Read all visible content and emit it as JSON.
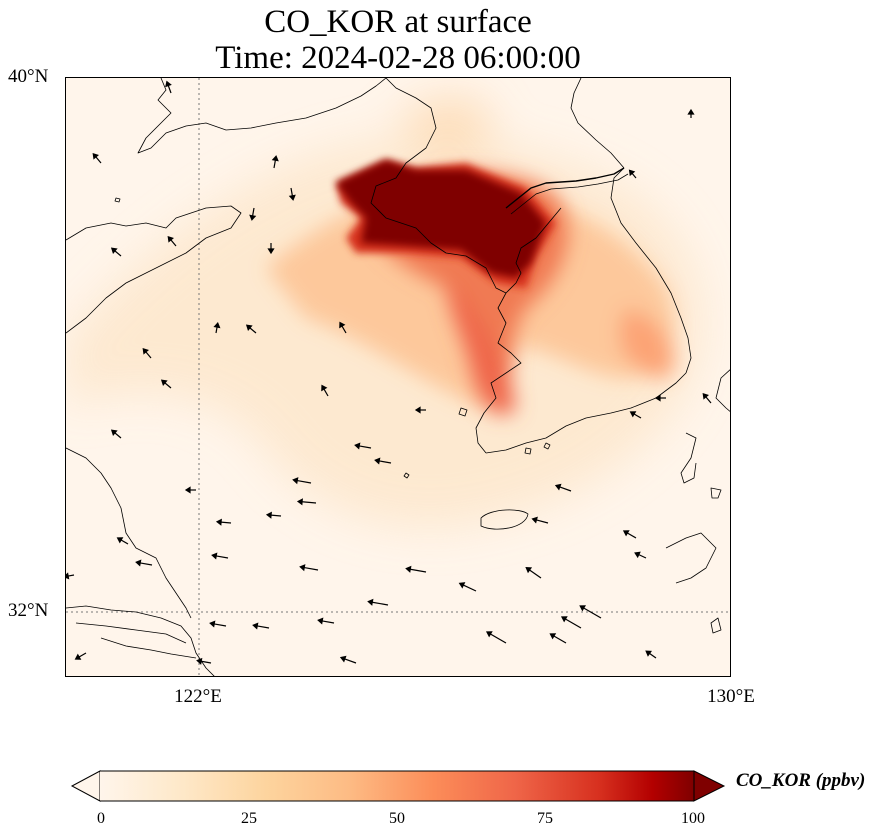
{
  "title": {
    "line1": "CO_KOR at surface",
    "line2": "Time: 2024-02-28 06:00:00"
  },
  "map": {
    "extent": {
      "lon_min": 119,
      "lon_max": 130,
      "lat_min": 31,
      "lat_max": 40
    },
    "lat_labels": [
      "40°N",
      "32°N"
    ],
    "lon_labels": [
      "122°E",
      "130°E"
    ],
    "gridlines": "dotted at 122°E and 32°N",
    "variable": "CO_KOR",
    "colormap": "OrRd",
    "background_color": "#fff5eb",
    "coastline_color": "#000000"
  },
  "colorbar": {
    "label": "CO_KOR (ppbv)",
    "ticks": [
      "0",
      "25",
      "50",
      "75",
      "100"
    ],
    "range": [
      0,
      100
    ],
    "extend": "both",
    "colors": [
      "#fff5eb",
      "#fdd49e",
      "#fdbb84",
      "#fc8d59",
      "#ef6548",
      "#d7301f",
      "#b30000",
      "#7f0000"
    ]
  }
}
